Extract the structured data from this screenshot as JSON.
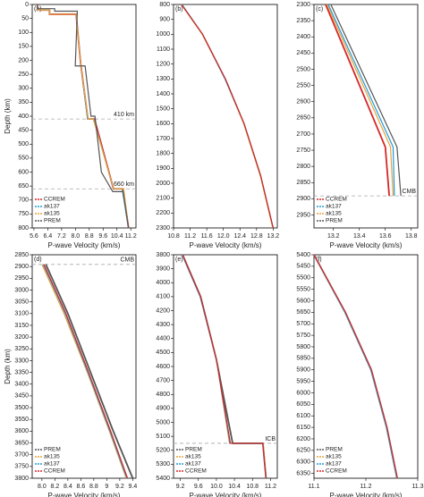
{
  "chart_data": [
    {
      "type": "line",
      "label": "(a)",
      "xlabel": "P-wave Velocity (km/s)",
      "ylabel": "Depth (km)",
      "legend": "lower left",
      "xlim": [
        5.5,
        11.5
      ],
      "xticks": [
        5.6,
        6.4,
        7.2,
        {
          "value": 8,
          "label": "8.0"
        },
        8.8,
        9.6,
        10.4,
        11.2
      ],
      "ylim": [
        0,
        800
      ],
      "yticks": [
        0,
        50,
        100,
        150,
        200,
        250,
        300,
        350,
        400,
        450,
        500,
        550,
        600,
        650,
        700,
        750,
        800
      ],
      "annotations": [
        {
          "text": "410 km",
          "value": 410
        },
        {
          "text": "660 km",
          "value": 660
        }
      ],
      "series": [
        {
          "name": "CCREM",
          "color": "#d62728",
          "x": [
            5.8,
            5.8,
            6.5,
            6.5,
            8.04,
            8.3,
            8.72,
            9.1,
            10.2,
            10.75,
            11.07
          ],
          "values": [
            0,
            20,
            20,
            35,
            35,
            210,
            410,
            410,
            660,
            660,
            800
          ]
        },
        {
          "name": "ak137",
          "color": "#1f9bd7",
          "x": [
            5.8,
            5.8,
            6.5,
            6.5,
            8.04,
            8.3,
            8.7,
            9.05,
            10.2,
            10.7,
            11.07
          ],
          "values": [
            0,
            20,
            20,
            35,
            35,
            210,
            410,
            410,
            660,
            660,
            800
          ]
        },
        {
          "name": "ak135",
          "color": "#e8a23a",
          "x": [
            5.8,
            5.8,
            6.5,
            6.5,
            8.04,
            8.3,
            8.73,
            9.03,
            10.21,
            10.79,
            11.07
          ],
          "values": [
            0,
            20,
            20,
            35,
            35,
            210,
            410,
            410,
            660,
            660,
            800
          ]
        },
        {
          "name": "PREM",
          "color": "#555555",
          "x": [
            5.8,
            5.8,
            6.8,
            6.8,
            8.11,
            7.99,
            8.56,
            8.9,
            9.13,
            9.5,
            10.16,
            10.75,
            11.07
          ],
          "values": [
            0,
            15,
            15,
            24,
            24,
            220,
            220,
            400,
            400,
            600,
            670,
            670,
            800
          ]
        }
      ]
    },
    {
      "type": "line",
      "label": "(b)",
      "xlabel": "P-wave Velocity (km/s)",
      "xlim": [
        10.8,
        13.3
      ],
      "xticks": [
        10.8,
        11.2,
        11.6,
        {
          "value": 12,
          "label": "12.0"
        },
        12.4,
        12.8,
        13.2
      ],
      "ylim": [
        800,
        2300
      ],
      "yticks": [
        800,
        900,
        1000,
        1100,
        1200,
        1300,
        1400,
        1500,
        1600,
        1700,
        1800,
        1900,
        2000,
        2100,
        2200,
        2300
      ],
      "series": [
        {
          "name": "PREM",
          "color": "#555555",
          "x": [
            11.0,
            11.5,
            12.05,
            12.5,
            12.9,
            13.2
          ],
          "values": [
            800,
            1000,
            1300,
            1600,
            1950,
            2300
          ]
        },
        {
          "name": "ak135",
          "color": "#e8a23a",
          "x": [
            10.99,
            11.49,
            12.04,
            12.49,
            12.89,
            13.19
          ],
          "values": [
            800,
            1000,
            1300,
            1600,
            1950,
            2300
          ]
        },
        {
          "name": "ak137",
          "color": "#1f9bd7",
          "x": [
            11.0,
            11.5,
            12.04,
            12.5,
            12.9,
            13.2
          ],
          "values": [
            800,
            1000,
            1300,
            1600,
            1950,
            2300
          ]
        },
        {
          "name": "CCREM",
          "color": "#d62728",
          "x": [
            10.99,
            11.5,
            12.05,
            12.5,
            12.9,
            13.2
          ],
          "values": [
            800,
            1000,
            1300,
            1600,
            1950,
            2300
          ]
        }
      ]
    },
    {
      "type": "line",
      "label": "(c)",
      "xlabel": "P-wave Velocity (km/s)",
      "legend": "lower left",
      "xlim": [
        13.05,
        13.85
      ],
      "xticks": [
        13.2,
        13.4,
        13.6,
        13.8
      ],
      "ylim": [
        2300,
        2990
      ],
      "yticks": [
        2300,
        2350,
        2400,
        2450,
        2500,
        2550,
        2600,
        2650,
        2700,
        2750,
        2800,
        2850,
        2900,
        2950
      ],
      "annotations": [
        {
          "text": "CMB",
          "value": 2891
        }
      ],
      "series": [
        {
          "name": "CCREM",
          "color": "#d62728",
          "x": [
            13.14,
            13.6,
            13.63
          ],
          "values": [
            2300,
            2740,
            2891
          ]
        },
        {
          "name": "ak137",
          "color": "#1f9bd7",
          "x": [
            13.16,
            13.66,
            13.67
          ],
          "values": [
            2300,
            2740,
            2891
          ]
        },
        {
          "name": "ak135",
          "color": "#e8a23a",
          "x": [
            13.15,
            13.64,
            13.66
          ],
          "values": [
            2300,
            2740,
            2891
          ]
        },
        {
          "name": "PREM",
          "color": "#555555",
          "x": [
            13.18,
            13.69,
            13.72
          ],
          "values": [
            2300,
            2740,
            2891
          ]
        }
      ]
    },
    {
      "type": "line",
      "label": "(d)",
      "xlabel": "P-wave Velocity (km/s)",
      "ylabel": "Depth (km)",
      "legend": "lower left",
      "xlim": [
        7.85,
        9.45
      ],
      "xticks": [
        {
          "value": 8,
          "label": "8.0"
        },
        8.2,
        8.4,
        8.6,
        8.8,
        9.0,
        9.2,
        9.4
      ],
      "ylim": [
        2850,
        3800
      ],
      "yticks": [
        2850,
        2900,
        2950,
        3000,
        3050,
        3100,
        3150,
        3200,
        3250,
        3300,
        3350,
        3400,
        3450,
        3500,
        3550,
        3600,
        3650,
        3700,
        3750,
        3800
      ],
      "annotations": [
        {
          "text": "CMB",
          "value": 2891
        }
      ],
      "series": [
        {
          "name": "PREM",
          "color": "#555555",
          "x": [
            8.06,
            8.4,
            8.75,
            9.1,
            9.4
          ],
          "values": [
            2891,
            3100,
            3350,
            3600,
            3800
          ]
        },
        {
          "name": "ak135",
          "color": "#e8a23a",
          "x": [
            8.0,
            8.34,
            8.7,
            9.04,
            9.3
          ],
          "values": [
            2891,
            3100,
            3350,
            3600,
            3800
          ]
        },
        {
          "name": "ak137",
          "color": "#1f9bd7",
          "x": [
            8.02,
            8.36,
            8.71,
            9.05,
            9.31
          ],
          "values": [
            2891,
            3100,
            3350,
            3600,
            3800
          ]
        },
        {
          "name": "CCREM",
          "color": "#d62728",
          "x": [
            8.03,
            8.37,
            8.72,
            9.06,
            9.32
          ],
          "values": [
            2891,
            3100,
            3350,
            3600,
            3800
          ]
        }
      ]
    },
    {
      "type": "line",
      "label": "(e)",
      "xlabel": "P-wave Velocity (km/s)",
      "legend": "lower left",
      "xlim": [
        9.05,
        11.35
      ],
      "xticks": [
        9.2,
        9.6,
        {
          "value": 10,
          "label": "10.0"
        },
        10.4,
        10.8,
        11.2
      ],
      "ylim": [
        3800,
        5400
      ],
      "yticks": [
        3800,
        3900,
        4000,
        4100,
        4200,
        4300,
        4400,
        4500,
        4600,
        4700,
        4800,
        4900,
        5000,
        5100,
        5200,
        5300,
        5400
      ],
      "annotations": [
        {
          "text": "ICB",
          "value": 5150
        }
      ],
      "series": [
        {
          "name": "PREM",
          "color": "#555555",
          "x": [
            9.25,
            9.65,
            10.0,
            10.36,
            11.03,
            11.1
          ],
          "values": [
            3800,
            4100,
            4550,
            5150,
            5150,
            5400
          ]
        },
        {
          "name": "ak135",
          "color": "#e8a23a",
          "x": [
            9.24,
            9.64,
            10.0,
            10.29,
            11.04,
            11.1
          ],
          "values": [
            3800,
            4100,
            4550,
            5150,
            5150,
            5400
          ]
        },
        {
          "name": "ak137",
          "color": "#1f9bd7",
          "x": [
            9.24,
            9.64,
            10.0,
            10.3,
            11.03,
            11.1
          ],
          "values": [
            3800,
            4100,
            4550,
            5150,
            5150,
            5400
          ]
        },
        {
          "name": "CCREM",
          "color": "#d62728",
          "x": [
            9.25,
            9.65,
            10.0,
            10.31,
            11.03,
            11.1
          ],
          "values": [
            3800,
            4100,
            4550,
            5150,
            5150,
            5400
          ]
        }
      ]
    },
    {
      "type": "line",
      "label": "(f)",
      "xlabel": "P-wave Velocity (km/s)",
      "legend": "lower left",
      "xlim": [
        11.1,
        11.3
      ],
      "xticks": [
        11.1,
        11.2,
        11.3
      ],
      "ylim": [
        5400,
        6371
      ],
      "yticks": [
        5400,
        5450,
        5500,
        5550,
        5600,
        5650,
        5700,
        5750,
        5800,
        5850,
        5900,
        5950,
        6000,
        6050,
        6100,
        6150,
        6200,
        6250,
        6300,
        6350
      ],
      "series": [
        {
          "name": "PREM",
          "color": "#555555",
          "x": [
            11.1,
            11.16,
            11.21,
            11.24,
            11.26
          ],
          "values": [
            5400,
            5650,
            5900,
            6150,
            6371
          ]
        },
        {
          "name": "ak135",
          "color": "#e8a23a",
          "x": [
            11.1,
            11.16,
            11.21,
            11.24,
            11.26
          ],
          "values": [
            5400,
            5650,
            5900,
            6150,
            6371
          ]
        },
        {
          "name": "ak137",
          "color": "#1f9bd7",
          "x": [
            11.1,
            11.16,
            11.21,
            11.24,
            11.26
          ],
          "values": [
            5400,
            5650,
            5900,
            6150,
            6371
          ]
        },
        {
          "name": "CCREM",
          "color": "#d62728",
          "x": [
            11.1,
            11.161,
            11.211,
            11.241,
            11.261
          ],
          "values": [
            5400,
            5650,
            5900,
            6150,
            6371
          ]
        }
      ]
    }
  ]
}
